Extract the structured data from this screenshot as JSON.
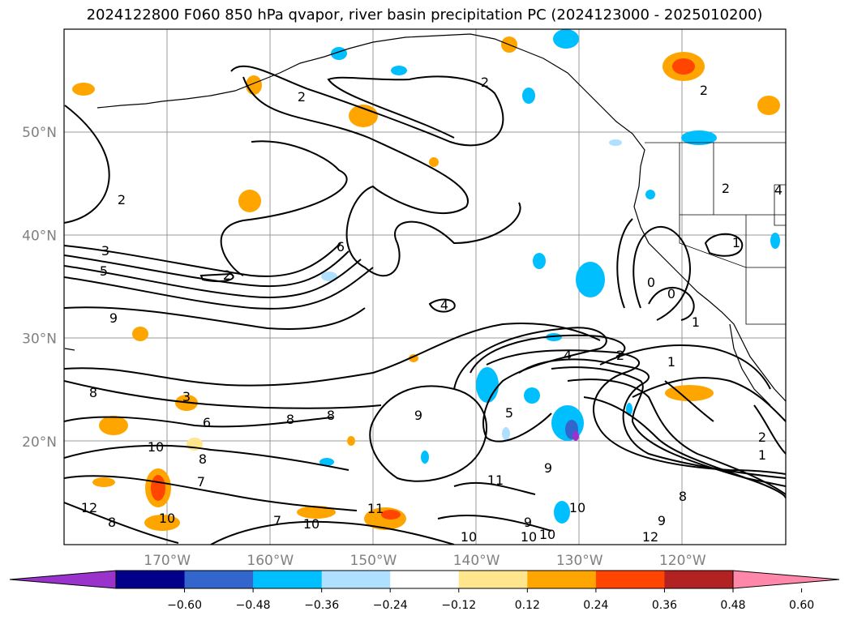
{
  "title": "2024122800 F060 850 hPa qvapor, river basin precipitation PC (2024123000 - 2025010200)",
  "lat_labels": [
    {
      "text": "50°N",
      "lat": 50
    },
    {
      "text": "40°N",
      "lat": 40
    },
    {
      "text": "30°N",
      "lat": 30
    },
    {
      "text": "20°N",
      "lat": 20
    }
  ],
  "lon_labels": [
    {
      "text": "170°W",
      "lon": -170
    },
    {
      "text": "160°W",
      "lon": -160
    },
    {
      "text": "150°W",
      "lon": -150
    },
    {
      "text": "140°W",
      "lon": -140
    },
    {
      "text": "130°W",
      "lon": -130
    },
    {
      "text": "120°W",
      "lon": -120
    }
  ],
  "map_extent": {
    "lon": [
      -180,
      -110
    ],
    "lat": [
      10,
      60
    ]
  },
  "contour_labels": [
    "2",
    "2",
    "2",
    "2",
    "2",
    "3",
    "5",
    "9",
    "6",
    "4",
    "2",
    "1",
    "4",
    "2",
    "1",
    "0",
    "0",
    "1",
    "4",
    "3",
    "8",
    "6",
    "8",
    "8",
    "8",
    "9",
    "5",
    "10",
    "8",
    "7",
    "9",
    "11",
    "12",
    "10",
    "7",
    "10",
    "9",
    "9",
    "10",
    "11",
    "10",
    "10",
    "8",
    "10",
    "12",
    "2",
    "1"
  ],
  "colorbar": {
    "colors": [
      "#9933cc",
      "#00008b",
      "#3366cc",
      "#00bfff",
      "#b0e0ff",
      "#ffffff",
      "#ffe68c",
      "#ffa500",
      "#ff4500",
      "#b22222",
      "#ff88aa"
    ],
    "ticks": [
      "−0.60",
      "−0.48",
      "−0.36",
      "−0.24",
      "−0.12",
      "0.12",
      "0.24",
      "0.36",
      "0.48",
      "0.60"
    ]
  }
}
